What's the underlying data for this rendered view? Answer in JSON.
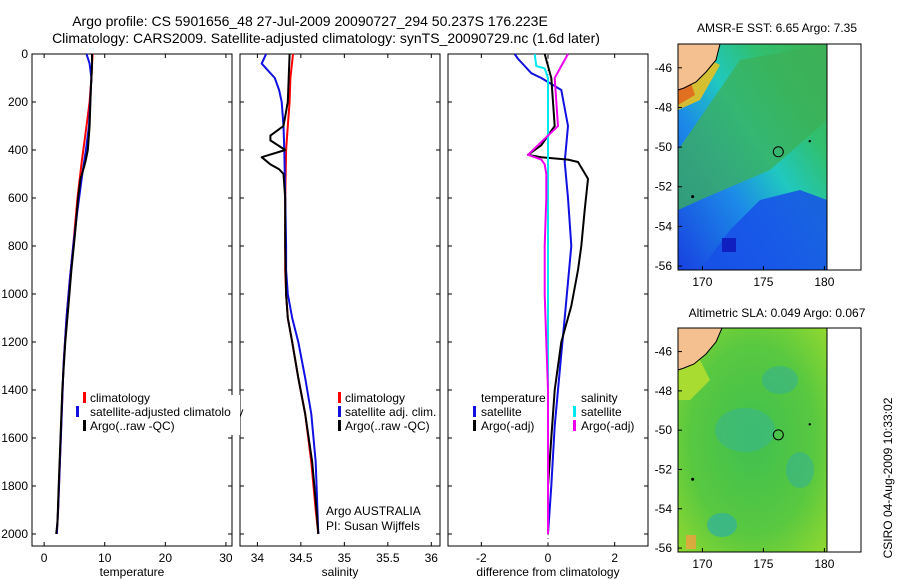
{
  "header": {
    "line1": "Argo profile: CS 5901656_48 27-Jul-2009 20090727_294 50.237S 176.223E",
    "line2": "Climatology: CARS2009. Satellite-adjusted climatology: synTS_20090729.nc (1.6d later)"
  },
  "footer": {
    "agency": "Argo AUSTRALIA",
    "pi": "PI: Susan Wijffels",
    "stamp": "CSIRO 04-Aug-2009 10:33:02"
  },
  "colors": {
    "climatology": "#ff0000",
    "satellite": "#1010e0",
    "argo": "#000000",
    "cyan": "#00e8f0",
    "magenta": "#ee00ee",
    "land": "#f4c090"
  },
  "chart_data": [
    {
      "type": "line",
      "name": "temperature-panel",
      "xlabel": "temperature",
      "ylabel": "",
      "xlim": [
        -2,
        31
      ],
      "ylim": [
        2050,
        0
      ],
      "xticks": [
        0,
        10,
        20,
        30
      ],
      "yticks": [
        0,
        200,
        400,
        600,
        800,
        1000,
        1200,
        1400,
        1600,
        1800,
        2000
      ],
      "legend": {
        "placement": "lower-right",
        "labels": [
          "climatology",
          "satellite-adjusted climatology",
          "Argo(..raw -QC)"
        ]
      },
      "series": [
        {
          "name": "climatology",
          "color": "#ff0000",
          "x": [
            8.0,
            7.9,
            7.8,
            7.5,
            7.0,
            6.2,
            5.5,
            4.8,
            4.2,
            3.7,
            3.2,
            2.9,
            2.6,
            2.3,
            2.1
          ],
          "y": [
            0,
            50,
            100,
            200,
            300,
            450,
            600,
            800,
            950,
            1100,
            1300,
            1500,
            1700,
            1900,
            2000
          ]
        },
        {
          "name": "satellite",
          "color": "#1010e0",
          "x": [
            7.0,
            7.5,
            7.8,
            7.6,
            7.4,
            6.9,
            6.3,
            5.5,
            4.8,
            4.2,
            3.7,
            3.2,
            2.9,
            2.6,
            2.3,
            2.1
          ],
          "y": [
            0,
            40,
            100,
            200,
            300,
            400,
            500,
            650,
            800,
            950,
            1100,
            1300,
            1500,
            1700,
            1900,
            2000
          ]
        },
        {
          "name": "Argo",
          "color": "#000000",
          "x": [
            7.9,
            7.9,
            7.7,
            7.5,
            7.2,
            6.9,
            6.6,
            6.0,
            5.6,
            5.1,
            4.5,
            4.0,
            3.5,
            3.0,
            2.7,
            2.4,
            2.2,
            2.0
          ],
          "y": [
            0,
            50,
            150,
            300,
            400,
            440,
            470,
            520,
            600,
            750,
            900,
            1050,
            1200,
            1400,
            1600,
            1800,
            1950,
            2000
          ]
        }
      ]
    },
    {
      "type": "line",
      "name": "salinity-panel",
      "xlabel": "salinity",
      "xlim": [
        33.8,
        36.1
      ],
      "ylim": [
        2050,
        0
      ],
      "xticks": [
        34,
        34.5,
        35,
        35.5,
        36
      ],
      "yticks": [
        0,
        200,
        400,
        600,
        800,
        1000,
        1200,
        1400,
        1600,
        1800,
        2000
      ],
      "legend": {
        "placement": "lower-right",
        "labels": [
          "climatology",
          "satellite adj. clim.",
          "Argo(..raw -QC)"
        ]
      },
      "series": [
        {
          "name": "climatology",
          "color": "#ff0000",
          "x": [
            34.41,
            34.38,
            34.37,
            34.35,
            34.33,
            34.32,
            34.32,
            34.32,
            34.33,
            34.35,
            34.4,
            34.47,
            34.55,
            34.62,
            34.67,
            34.7
          ],
          "y": [
            0,
            100,
            200,
            300,
            400,
            600,
            800,
            900,
            1000,
            1100,
            1200,
            1350,
            1500,
            1700,
            1900,
            2000
          ]
        },
        {
          "name": "satellite",
          "color": "#1010e0",
          "x": [
            34.1,
            34.05,
            34.1,
            34.2,
            34.25,
            34.28,
            34.3,
            34.31,
            34.32,
            34.33,
            34.33,
            34.35,
            34.4,
            34.47,
            34.55,
            34.62,
            34.67,
            34.7
          ],
          "y": [
            0,
            40,
            60,
            100,
            150,
            200,
            300,
            400,
            600,
            800,
            900,
            1000,
            1100,
            1200,
            1350,
            1500,
            1700,
            2000
          ]
        },
        {
          "name": "Argo",
          "color": "#000000",
          "x": [
            34.37,
            34.36,
            34.35,
            34.3,
            34.15,
            34.15,
            34.32,
            34.05,
            34.15,
            34.25,
            34.3,
            34.32,
            34.32,
            34.33,
            34.35,
            34.4,
            34.47,
            34.55,
            34.63,
            34.68,
            34.7
          ],
          "y": [
            0,
            100,
            200,
            300,
            340,
            360,
            400,
            430,
            460,
            480,
            500,
            600,
            800,
            1000,
            1100,
            1200,
            1350,
            1500,
            1700,
            1900,
            2000
          ]
        }
      ]
    },
    {
      "type": "line",
      "name": "difference-panel",
      "xlabel": "difference from climatology",
      "xlim": [
        -3.0,
        3.0
      ],
      "ylim": [
        2050,
        0
      ],
      "xticks": [
        -2,
        0,
        2
      ],
      "yticks": [
        0,
        200,
        400,
        600,
        800,
        1000,
        1200,
        1400,
        1600,
        1800,
        2000
      ],
      "legend": {
        "placement": "lower-center",
        "labels": [
          "temperature",
          "satellite",
          "Argo(-adj)",
          "salinity",
          "satellite",
          "Argo(-adj)"
        ]
      },
      "series": [
        {
          "name": "temperature satellite",
          "color": "#1010e0",
          "x": [
            -1.0,
            -0.9,
            -0.7,
            -0.5,
            -0.2,
            0.4,
            0.6,
            0.5,
            0.6,
            0.7,
            0.6,
            0.5,
            0.4,
            0.3,
            0.2,
            0.1,
            0.0
          ],
          "y": [
            0,
            20,
            50,
            80,
            100,
            150,
            300,
            450,
            600,
            800,
            950,
            1100,
            1250,
            1400,
            1550,
            1800,
            2000
          ]
        },
        {
          "name": "temperature Argo",
          "color": "#000000",
          "x": [
            -0.1,
            0.1,
            0.2,
            -0.2,
            -0.6,
            -0.2,
            0.6,
            0.9,
            1.2,
            1.1,
            1.0,
            0.9,
            0.7,
            0.4,
            0.2,
            0.1,
            0.0,
            0.0
          ],
          "y": [
            0,
            100,
            300,
            380,
            420,
            430,
            440,
            450,
            520,
            650,
            800,
            900,
            1050,
            1200,
            1400,
            1600,
            1800,
            2000
          ]
        },
        {
          "name": "salinity satellite",
          "color": "#00e8f0",
          "x": [
            -0.4,
            -0.35,
            -0.1,
            0.0,
            0.0,
            0.0,
            0.0,
            0.0,
            0.0,
            0.0
          ],
          "y": [
            0,
            50,
            60,
            100,
            300,
            600,
            1000,
            1400,
            1800,
            2000
          ]
        },
        {
          "name": "salinity Argo",
          "color": "#ee00ee",
          "x": [
            0.6,
            0.4,
            0.2,
            0.3,
            -0.3,
            -0.6,
            -0.2,
            -0.1,
            -0.05,
            -0.05,
            -0.1,
            -0.1,
            -0.05,
            0.0,
            0.0,
            0.0,
            0.0
          ],
          "y": [
            0,
            50,
            100,
            300,
            380,
            420,
            440,
            460,
            500,
            600,
            800,
            1000,
            1200,
            1400,
            1600,
            1800,
            2000
          ]
        }
      ]
    },
    {
      "type": "heatmap",
      "name": "amsre-sst-map",
      "title": "AMSR-E SST: 6.65 Argo: 7.35",
      "xlim": [
        168,
        183
      ],
      "ylim": [
        -56.2,
        -44.8
      ],
      "xticks": [
        170,
        175,
        180
      ],
      "yticks": [
        -46,
        -48,
        -50,
        -52,
        -54,
        -56
      ],
      "argo_position": {
        "lon": 176.223,
        "lat": -50.237
      }
    },
    {
      "type": "heatmap",
      "name": "altimetric-sla-map",
      "title": "Altimetric SLA: 0.049 Argo: 0.067",
      "xlim": [
        168,
        183
      ],
      "ylim": [
        -56.2,
        -44.8
      ],
      "xticks": [
        170,
        175,
        180
      ],
      "yticks": [
        -46,
        -48,
        -50,
        -52,
        -54,
        -56
      ],
      "argo_position": {
        "lon": 176.223,
        "lat": -50.237
      }
    }
  ]
}
